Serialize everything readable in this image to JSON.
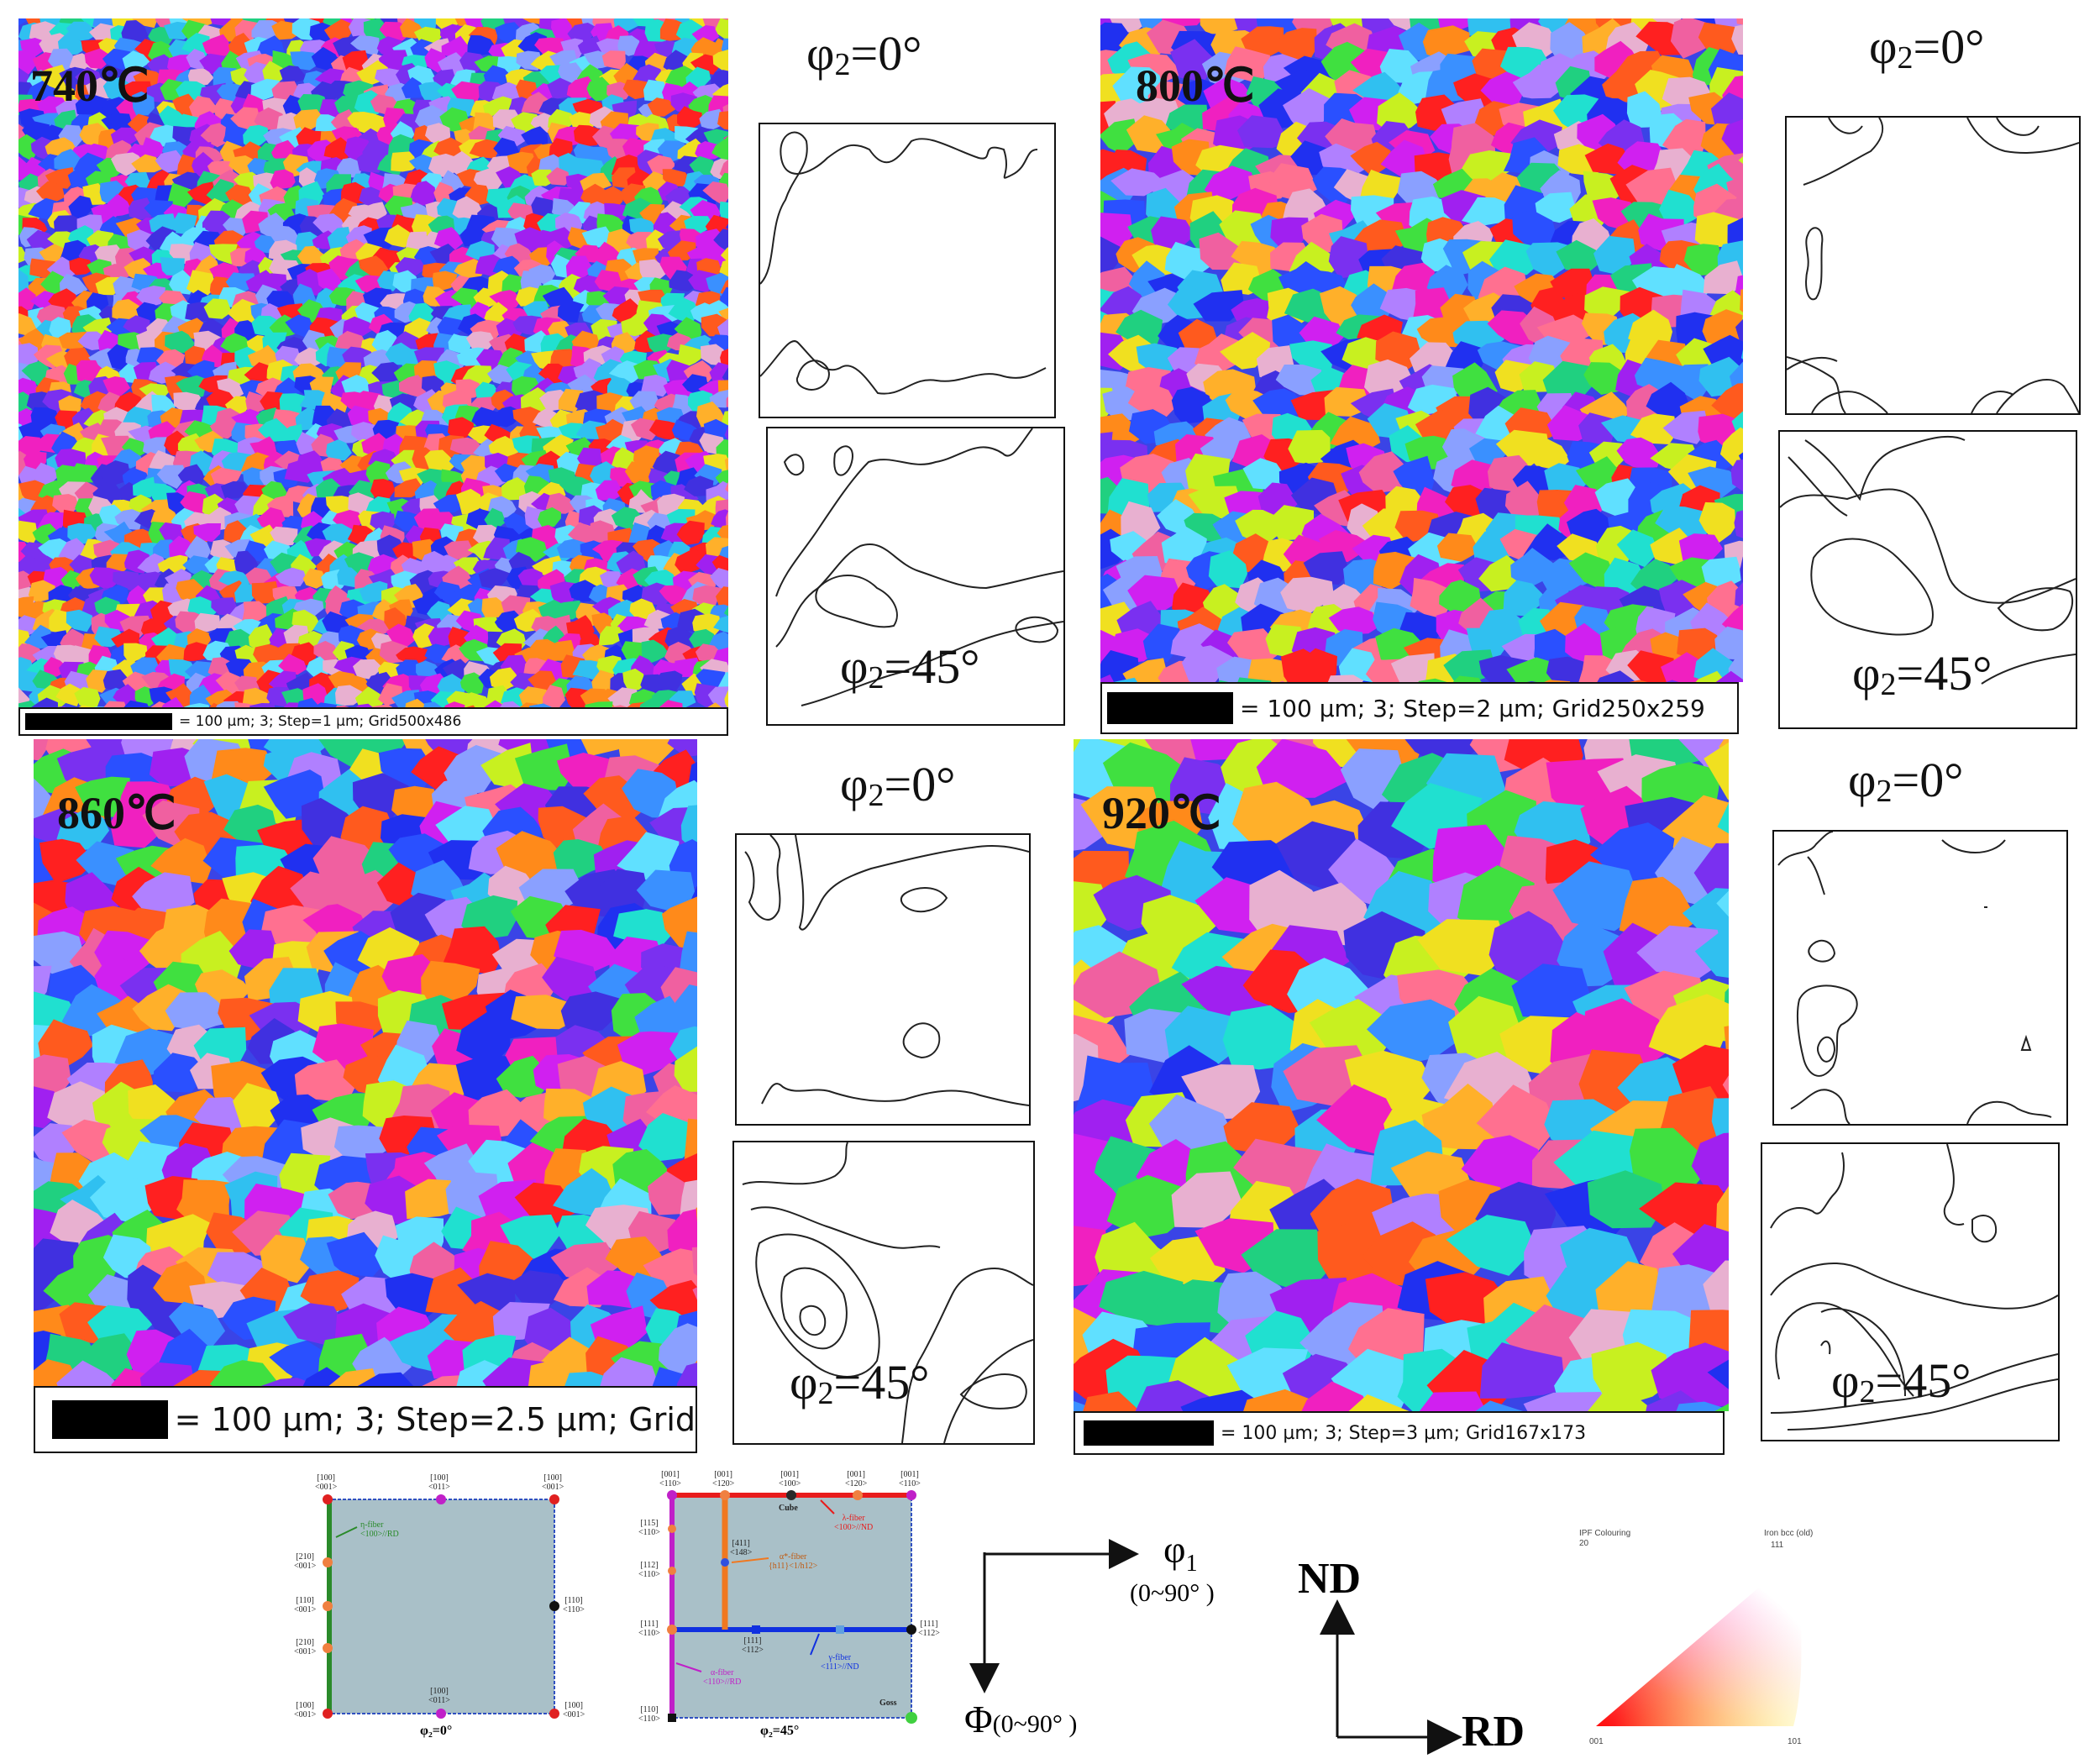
{
  "panels": [
    {
      "temp": "740℃",
      "scale_text": "= 100 µm; 3; Step=1 µm; Grid500x486",
      "odf_top_label": "φ",
      "odf_bottom_label": "φ"
    },
    {
      "temp": "800℃",
      "scale_text": "= 100 µm; 3; Step=2 µm; Grid250x259"
    },
    {
      "temp": "860℃",
      "scale_text": "= 100 µm; 3; Step=2.5 µm; Grid"
    },
    {
      "temp": "920℃",
      "scale_text": "= 100 µm; 3; Step=3 µm; Grid167x173"
    }
  ],
  "odf_labels": {
    "phi": "φ",
    "sub2": "2",
    "deg0": "=0°",
    "deg45": "=45°"
  },
  "key_phi2_0": {
    "top_labels": [
      "[100]\n<001>",
      "[100]\n<011>",
      "[100]\n<001>"
    ],
    "left_labels": [
      "[210]\n<001>",
      "[110]\n<001>",
      "[210]\n<001>"
    ],
    "right_label": "[110]\n<110>",
    "bottom_labels": [
      "[100]\n<001>",
      "[100]\n<011>",
      "[100]\n<001>"
    ],
    "eta_fiber": "η-fiber\n<100>//RD",
    "caption": "φ₂=0°"
  },
  "key_phi2_45": {
    "top_labels": [
      "[001]\n<110>",
      "[001]\n<120>",
      "[001]\n<100>",
      "[001]\n<120>",
      "[001]\n<110>"
    ],
    "cube": "Cube",
    "lambda_fiber": "λ-fiber\n<100>//ND",
    "p411": "[411]\n<148>",
    "alpha_star": "α*-fiber\n{h11}<1/h12>",
    "left_labels": [
      "[115]\n<110>",
      "[112]\n<110>",
      "[111]\n<110>",
      "[110]\n<110>"
    ],
    "p111_112": "[111]\n<112>",
    "right_label": "[111]\n<112>",
    "gamma_fiber": "γ-fiber\n<111>//ND",
    "alpha_fiber": "α-fiber\n<110>//RD",
    "goss": "Goss",
    "caption": "φ₂=45°"
  },
  "axes": {
    "phi1": "φ",
    "phi1_sub": "1",
    "phi1_range": "(0~90° )",
    "Phi": "Φ",
    "Phi_range": "(0~90° )"
  },
  "sample_axes": {
    "nd": "ND",
    "rd": "RD"
  },
  "ipf": {
    "title": "IPF Colouring",
    "subtitle": "20",
    "right_title": "Iron bcc (old)",
    "corner_top": "111",
    "corner_left": "001",
    "corner_right": "101"
  },
  "colors": {
    "ipf_red": "#ff2a2a",
    "ipf_blue": "#2030ff",
    "ipf_green": "#20e040",
    "eta_fiber": "#2a8a2a",
    "lambda_fiber": "#e81c1c",
    "gamma_fiber": "#1030e0",
    "alpha_fiber": "#c020c8",
    "alpha_star_fiber": "#f07820",
    "key_bg": "#a9c0c8"
  }
}
